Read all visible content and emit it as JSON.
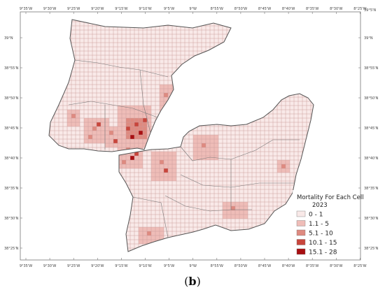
{
  "map": {
    "legend": {
      "title_line1": "Mortality For Each Cell",
      "title_line2": "2023",
      "classes": [
        {
          "label": "0 - 1",
          "color": "#f9e9e8"
        },
        {
          "label": "1.1 - 5",
          "color": "#efbdb8"
        },
        {
          "label": "5.1 - 10",
          "color": "#de8a80"
        },
        {
          "label": "10.1 - 15",
          "color": "#c8463c"
        },
        {
          "label": "15.1 - 28",
          "color": "#a80f12"
        }
      ]
    },
    "longitude_ticks": [
      "9°35'W",
      "9°30'W",
      "9°25'W",
      "9°20'W",
      "9°15'W",
      "9°10'W",
      "9°5'W",
      "9°W",
      "8°55'W",
      "8°50'W",
      "8°45'W",
      "8°40'W",
      "8°35'W",
      "8°30'W",
      "8°25'W"
    ],
    "latitude_ticks": [
      "39°N",
      "38°55'N",
      "38°50'N",
      "38°45'N",
      "38°40'N",
      "38°35'N",
      "38°30'N",
      "38°25'N"
    ],
    "right_top_tick": "39°5'N",
    "grid_color": "#c99a98",
    "outline_color": "#555555",
    "caption_label": "b"
  }
}
